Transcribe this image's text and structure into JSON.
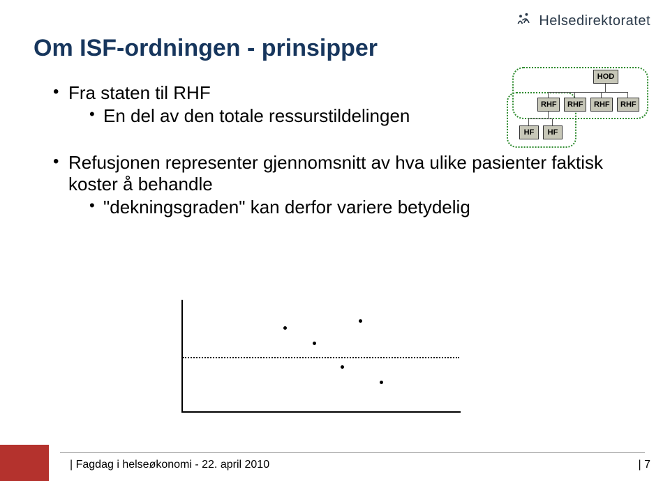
{
  "colors": {
    "title": "#17365d",
    "text": "#000000",
    "accent_red": "#b4322d",
    "org_box_bg": "#c7c7b8",
    "org_dash": "#2e8b2e",
    "logo_text": "#2b3a4a"
  },
  "header": {
    "logo_text": "Helsedirektoratet"
  },
  "title": "Om ISF-ordningen - prinsipper",
  "bullets": {
    "b1": "Fra staten til RHF",
    "b1_sub1": "En del av den totale ressurstildelingen",
    "b2": "Refusjonen representer gjennomsnitt av hva ulike pasienter faktisk koster å behandle",
    "b2_sub1": "\"dekningsgraden\" kan derfor variere betydelig"
  },
  "orgchart": {
    "type": "tree",
    "nodes": {
      "hod": "HOD",
      "rhf1": "RHF",
      "rhf2": "RHF",
      "rhf3": "RHF",
      "rhf4": "RHF",
      "hf1": "HF",
      "hf2": "HF"
    }
  },
  "scatter": {
    "type": "scatter",
    "xlim": [
      0,
      400
    ],
    "ylim": [
      0,
      160
    ],
    "dashed_y": 78,
    "points": [
      {
        "x": 148,
        "y": 120
      },
      {
        "x": 190,
        "y": 98
      },
      {
        "x": 230,
        "y": 64
      },
      {
        "x": 256,
        "y": 130
      },
      {
        "x": 286,
        "y": 42
      }
    ],
    "axis_color": "#000000",
    "dot_color": "#000000",
    "dash_color": "#000000"
  },
  "footer": {
    "text": "| Fagdag i helseøkonomi - 22. april 2010",
    "page": "| 7"
  }
}
